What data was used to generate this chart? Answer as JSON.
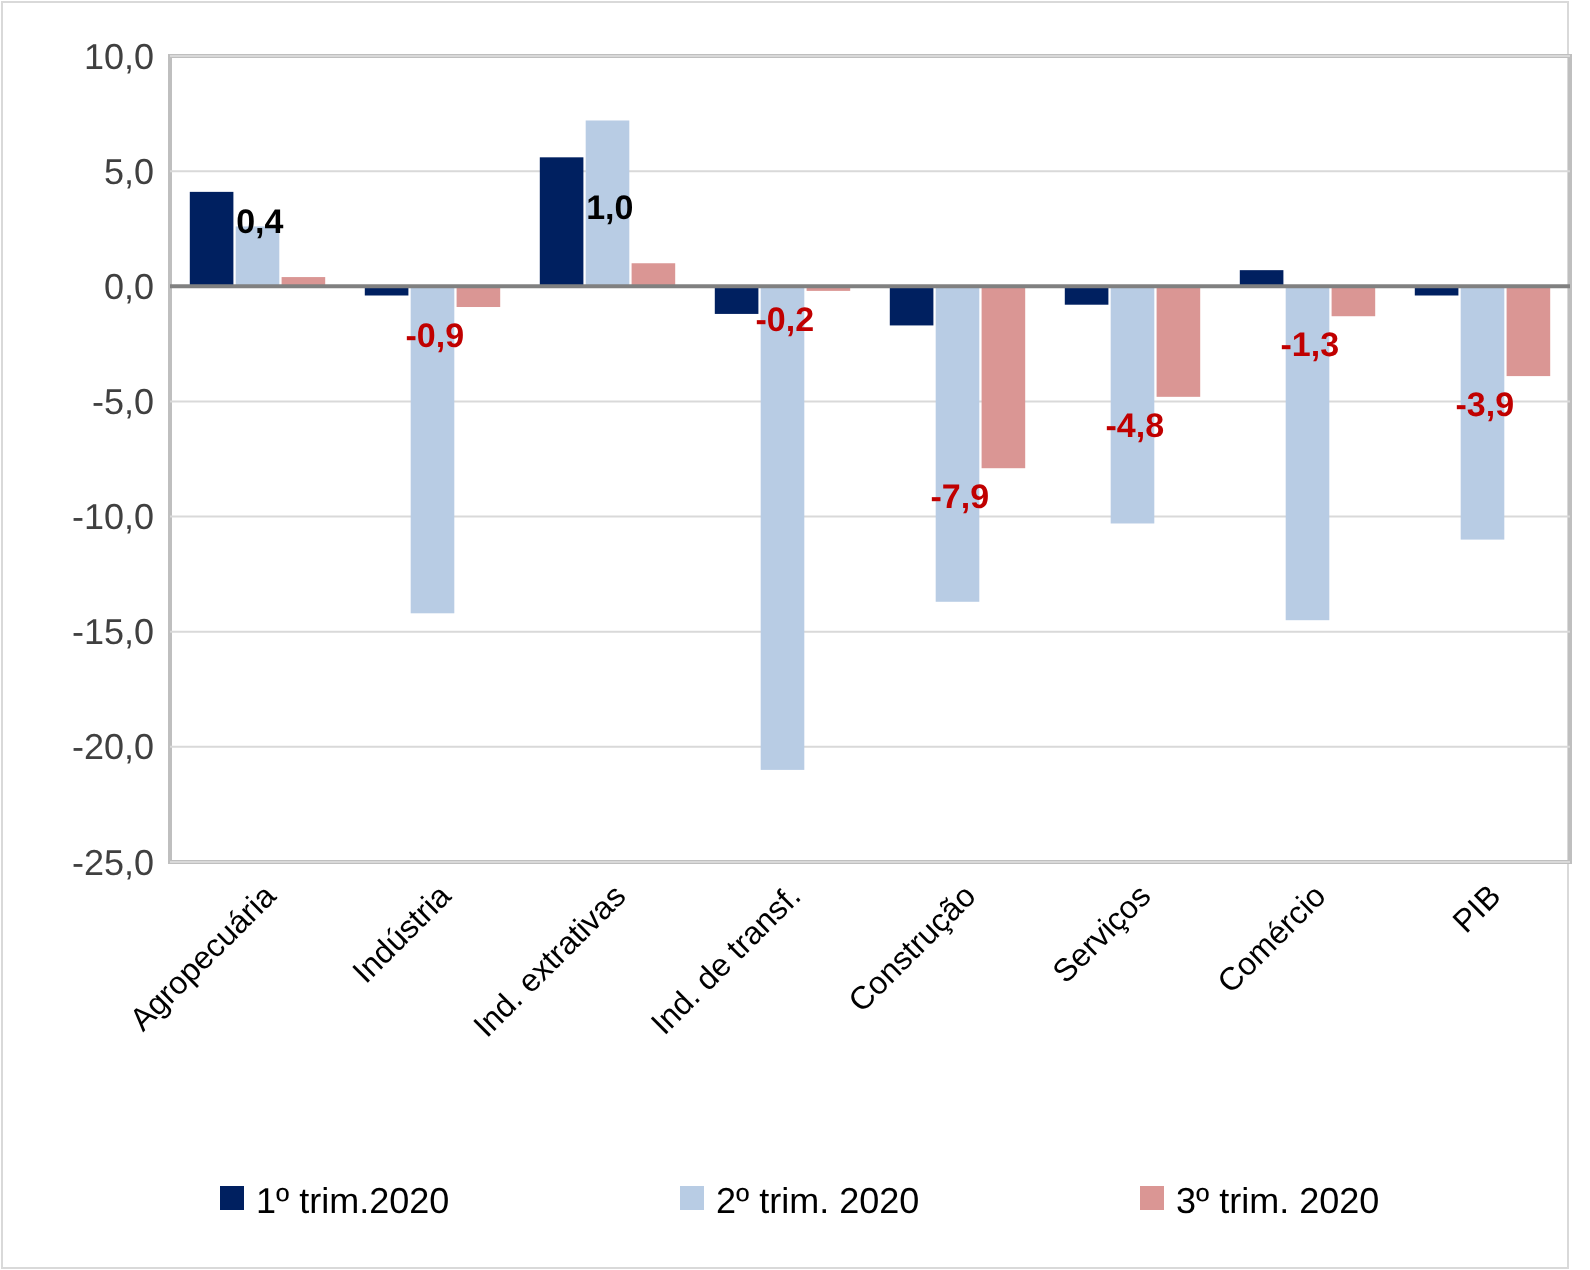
{
  "chart_data": {
    "type": "bar",
    "categories": [
      "Agropecuária",
      "Indústria",
      "Ind. extrativas",
      "Ind. de transf.",
      "Construção",
      "Serviços",
      "Comércio",
      "PIB"
    ],
    "series": [
      {
        "name": "1º trim.2020",
        "color": "#002060",
        "values": [
          4.1,
          -0.4,
          5.6,
          -1.2,
          -1.7,
          -0.8,
          0.7,
          -0.4
        ]
      },
      {
        "name": "2º trim. 2020",
        "color": "#b8cce4",
        "values": [
          2.6,
          -14.2,
          7.2,
          -21.0,
          -13.7,
          -10.3,
          -14.5,
          -11.0
        ]
      },
      {
        "name": "3º trim. 2020",
        "color": "#da9694",
        "values": [
          0.4,
          -0.9,
          1.0,
          -0.2,
          -7.9,
          -4.8,
          -1.3,
          -3.9
        ],
        "value_labels": [
          "0,4",
          "-0,9",
          "1,0",
          "-0,2",
          "-7,9",
          "-4,8",
          "-1,3",
          "-3,9"
        ]
      }
    ],
    "ylim": [
      -25,
      10
    ],
    "yticks": [
      {
        "value": 10,
        "label": "10,0"
      },
      {
        "value": 5,
        "label": "5,0"
      },
      {
        "value": 0,
        "label": "0,0"
      },
      {
        "value": -5,
        "label": "-5,0"
      },
      {
        "value": -10,
        "label": "-10,0"
      },
      {
        "value": -15,
        "label": "-15,0"
      },
      {
        "value": -20,
        "label": "-20,0"
      },
      {
        "value": -25,
        "label": "-25,0"
      }
    ],
    "grid": "y",
    "legend": "bottom"
  }
}
